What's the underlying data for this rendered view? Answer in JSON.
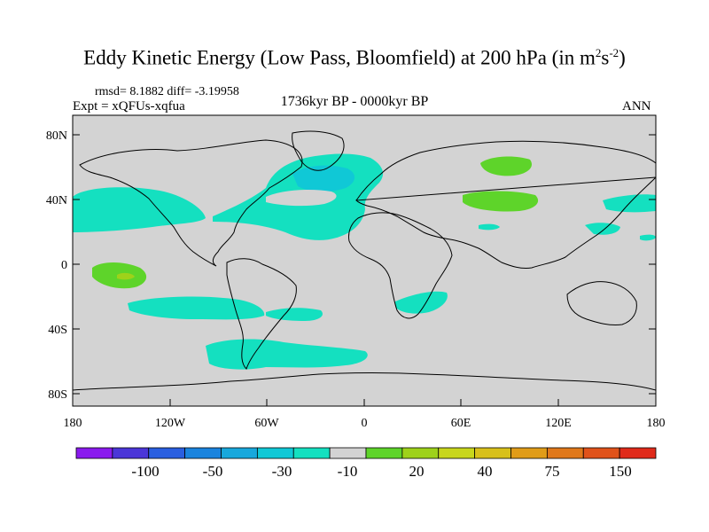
{
  "header": {
    "title_main": "Eddy Kinetic Energy (Low Pass, Bloomfield) at 200 hPa (in m",
    "title_sup1": "2",
    "title_mid": "s",
    "title_sup2": "-2",
    "title_end": ")",
    "stats": "rmsd= 8.1882 diff= -3.19958",
    "expt": "Expt = xQFUs-xqfua",
    "period": "1736kyr BP - 0000kyr BP",
    "season": "ANN"
  },
  "map": {
    "lat_labels": [
      "80N",
      "40N",
      "0",
      "40S",
      "80S"
    ],
    "lon_labels": [
      "180",
      "120W",
      "60W",
      "0",
      "60E",
      "120E",
      "180"
    ],
    "background_color": "#d3d3d3"
  },
  "colorbar": {
    "colors": [
      "#8a1aee",
      "#4b36d8",
      "#2a5fe0",
      "#1a84de",
      "#18a8dc",
      "#10c8d6",
      "#14e0c0",
      "#d3d3d3",
      "#5ed42a",
      "#9ed21a",
      "#c8d61c",
      "#d8c01a",
      "#e09c18",
      "#e0781a",
      "#e0521a",
      "#e02a1a"
    ],
    "labels": [
      "-100",
      "-50",
      "-30",
      "-10",
      "20",
      "40",
      "75",
      "150"
    ]
  }
}
